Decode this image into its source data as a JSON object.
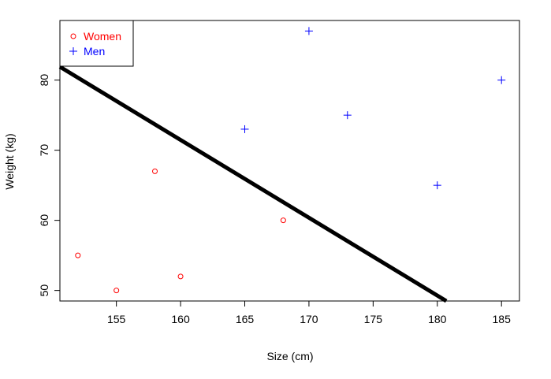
{
  "chart_data": {
    "type": "scatter",
    "title": "",
    "xlabel": "Size (cm)",
    "ylabel": "Weight (kg)",
    "xlim": [
      150.6,
      186.4
    ],
    "ylim": [
      48.5,
      88.5
    ],
    "xticks": [
      155,
      160,
      165,
      170,
      175,
      180,
      185
    ],
    "yticks": [
      50,
      60,
      70,
      80
    ],
    "grid": false,
    "legend": {
      "position": "top-left"
    },
    "series": [
      {
        "name": "Women",
        "marker": "circle",
        "color": "#ff0000",
        "points": [
          {
            "x": 152,
            "y": 55
          },
          {
            "x": 155,
            "y": 50
          },
          {
            "x": 158,
            "y": 67
          },
          {
            "x": 160,
            "y": 52
          },
          {
            "x": 168,
            "y": 60
          }
        ]
      },
      {
        "name": "Men",
        "marker": "plus",
        "color": "#0000ff",
        "points": [
          {
            "x": 165,
            "y": 73
          },
          {
            "x": 170,
            "y": 87
          },
          {
            "x": 173,
            "y": 75
          },
          {
            "x": 180,
            "y": 65
          },
          {
            "x": 185,
            "y": 80
          }
        ]
      }
    ],
    "line": {
      "color": "#000000",
      "points": [
        {
          "x": 150.6,
          "y": 81.9
        },
        {
          "x": 180.7,
          "y": 48.5
        }
      ]
    }
  }
}
